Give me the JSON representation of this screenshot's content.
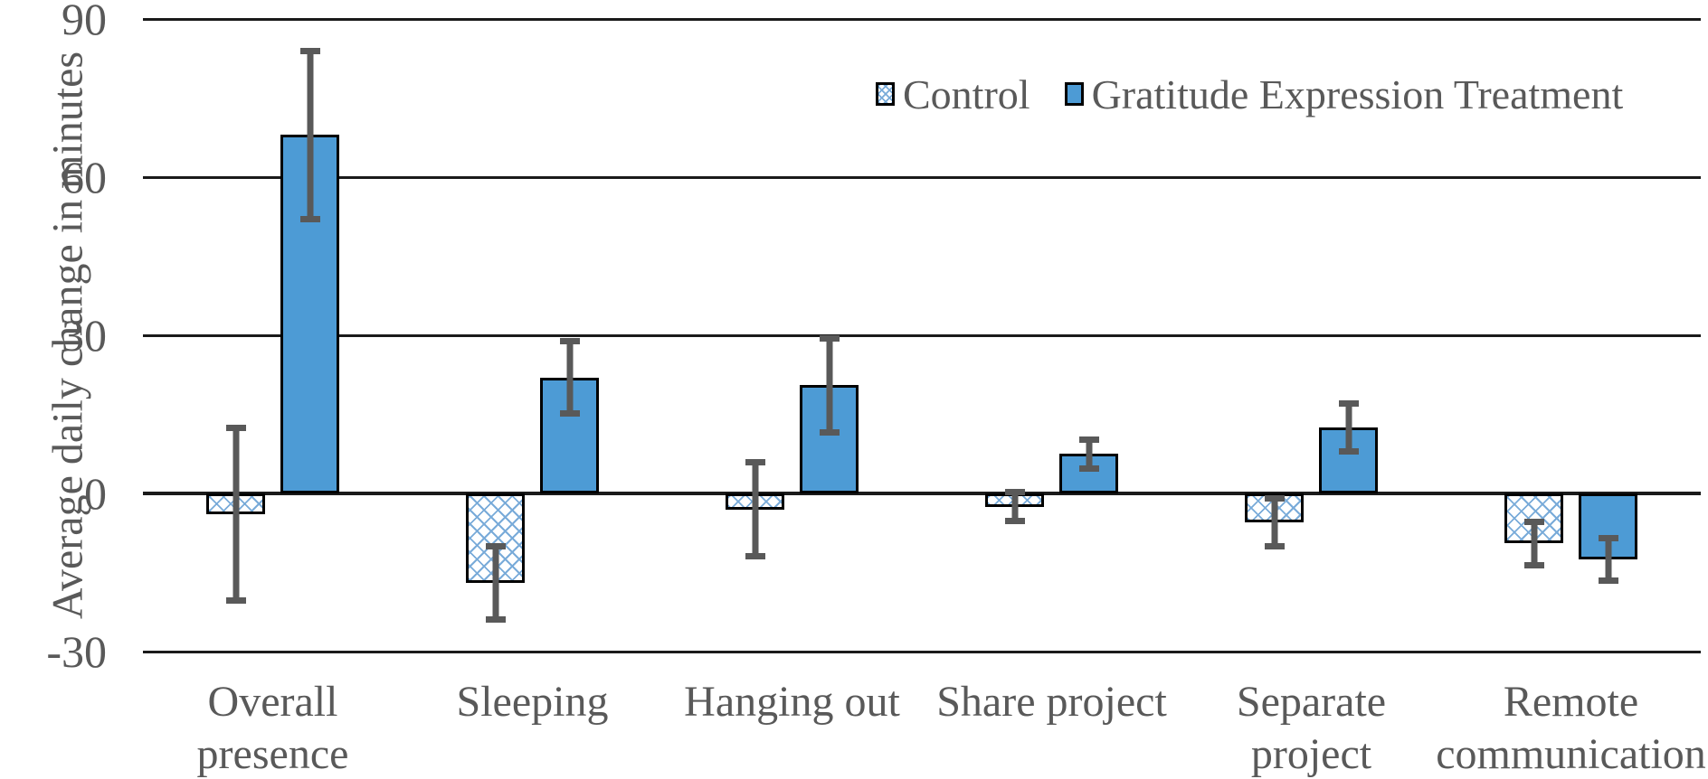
{
  "figure": {
    "background": "#ffffff"
  },
  "colors": {
    "treatment_fill": "#4d9bd5",
    "hatch_line": "#79abd9",
    "bar_border": "#000000",
    "error_bar": "#595959",
    "text": "#595959",
    "gridline": "#1a1a1a"
  },
  "legend": {
    "items": [
      {
        "label": "Control",
        "swatch": "hatch"
      },
      {
        "label": "Gratitude Expression Treatment",
        "swatch": "solid"
      }
    ]
  },
  "chart_data": {
    "type": "bar",
    "title": "",
    "xlabel": "",
    "ylabel": "Average daily change in minutes",
    "ylim": [
      -30,
      90
    ],
    "yticks": [
      90,
      60,
      30,
      0,
      -30
    ],
    "grid": true,
    "legend_position": "top-right-inside",
    "categories": [
      "Overall presence",
      "Sleeping",
      "Hanging out",
      "Share project",
      "Separate project",
      "Remote communication"
    ],
    "category_label_lines": [
      [
        "Overall",
        "presence"
      ],
      [
        "Sleeping"
      ],
      [
        "Hanging out"
      ],
      [
        "Share project"
      ],
      [
        "Separate",
        "project"
      ],
      [
        "Remote",
        "communication"
      ]
    ],
    "series": [
      {
        "name": "Control",
        "style": "hatch",
        "values": [
          -4,
          -17,
          -3,
          -2.5,
          -5.5,
          -9.5
        ],
        "errors": [
          17,
          7.5,
          9.5,
          3.3,
          5.2,
          4.7
        ]
      },
      {
        "name": "Gratitude Expression Treatment",
        "style": "solid",
        "values": [
          68,
          22,
          20.5,
          7.5,
          12.5,
          -12.5
        ],
        "errors": [
          16.5,
          7.5,
          9.5,
          3.3,
          5.2,
          4.7
        ]
      }
    ]
  }
}
